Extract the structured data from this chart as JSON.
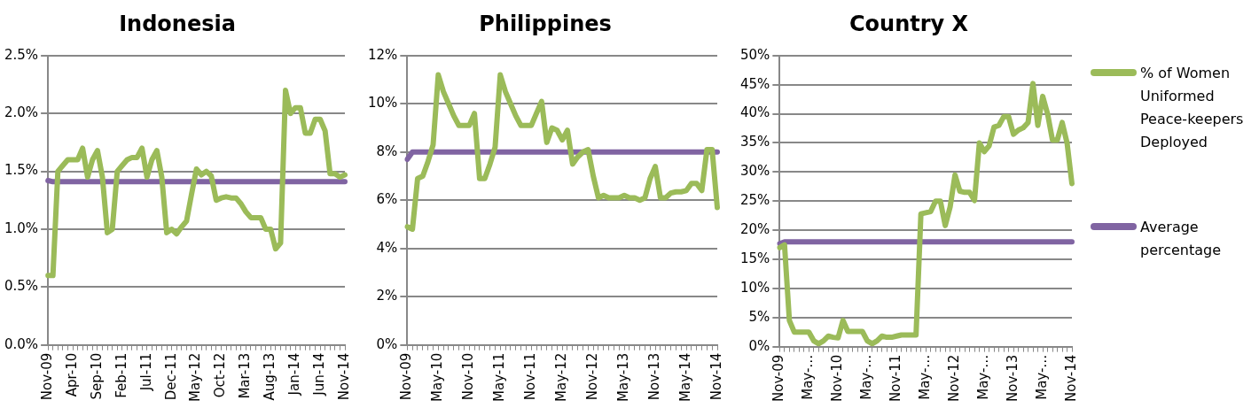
{
  "chart_data": [
    {
      "type": "line",
      "title": "Indonesia",
      "categories": [
        "Nov-09",
        null,
        null,
        null,
        null,
        "Apr-10",
        null,
        null,
        null,
        null,
        "Sep-10",
        null,
        null,
        null,
        null,
        "Feb-11",
        null,
        null,
        null,
        null,
        "Jul-11",
        null,
        null,
        null,
        null,
        "Dec-11",
        null,
        null,
        null,
        null,
        "May-12",
        null,
        null,
        null,
        null,
        "Oct-12",
        null,
        null,
        null,
        null,
        "Mar-13",
        null,
        null,
        null,
        null,
        "Aug-13",
        null,
        null,
        null,
        null,
        "Jan-14",
        null,
        null,
        null,
        null,
        "Jun-14",
        null,
        null,
        null,
        null,
        "Nov-14"
      ],
      "series": [
        {
          "color": "#9bbb59",
          "values": [
            0.6,
            0.6,
            1.5,
            1.55,
            1.6,
            1.6,
            1.6,
            1.7,
            1.45,
            1.6,
            1.68,
            1.45,
            0.97,
            1.0,
            1.5,
            1.55,
            1.6,
            1.62,
            1.62,
            1.7,
            1.45,
            1.6,
            1.68,
            1.45,
            0.97,
            1.0,
            0.96,
            1.02,
            1.07,
            1.3,
            1.52,
            1.47,
            1.5,
            1.46,
            1.25,
            1.27,
            1.28,
            1.27,
            1.27,
            1.22,
            1.15,
            1.1,
            1.1,
            1.1,
            1.0,
            1.0,
            0.83,
            0.88,
            2.2,
            2.0,
            2.05,
            2.05,
            1.83,
            1.83,
            1.95,
            1.95,
            1.85,
            1.48,
            1.48,
            1.45,
            1.47
          ]
        },
        {
          "color": "#8064a2",
          "values": [
            1.42,
            1.41,
            1.41,
            1.41,
            1.41,
            1.41,
            1.41,
            1.41,
            1.41,
            1.41,
            1.41,
            1.41,
            1.41,
            1.41,
            1.41,
            1.41,
            1.41,
            1.41,
            1.41,
            1.41,
            1.41,
            1.41,
            1.41,
            1.41,
            1.41,
            1.41,
            1.41,
            1.41,
            1.41,
            1.41,
            1.41,
            1.41,
            1.41,
            1.41,
            1.41,
            1.41,
            1.41,
            1.41,
            1.41,
            1.41,
            1.41,
            1.41,
            1.41,
            1.41,
            1.41,
            1.41,
            1.41,
            1.41,
            1.41,
            1.41,
            1.41,
            1.41,
            1.41,
            1.41,
            1.41,
            1.41,
            1.41,
            1.41,
            1.41,
            1.41,
            1.41
          ]
        }
      ],
      "ylim": [
        0,
        2.5
      ],
      "yticks": [
        {
          "value": 0,
          "label": "0.0%"
        },
        {
          "value": 0.5,
          "label": "0.5%"
        },
        {
          "value": 1,
          "label": "1.0%"
        },
        {
          "value": 1.5,
          "label": "1.5%"
        },
        {
          "value": 2,
          "label": "2.0%"
        },
        {
          "value": 2.5,
          "label": "2.5%"
        }
      ],
      "grid": "y",
      "marker": "none",
      "line_style": "solid"
    },
    {
      "type": "line",
      "title": "Philippines",
      "categories": [
        "Nov-09",
        null,
        null,
        null,
        null,
        null,
        "May-10",
        null,
        null,
        null,
        null,
        null,
        "Nov-10",
        null,
        null,
        null,
        null,
        null,
        "May-11",
        null,
        null,
        null,
        null,
        null,
        "Nov-11",
        null,
        null,
        null,
        null,
        null,
        "May-12",
        null,
        null,
        null,
        null,
        null,
        "Nov-12",
        null,
        null,
        null,
        null,
        null,
        "May-13",
        null,
        null,
        null,
        null,
        null,
        "Nov-13",
        null,
        null,
        null,
        null,
        null,
        "May-14",
        null,
        null,
        null,
        null,
        null,
        "Nov-14"
      ],
      "series": [
        {
          "color": "#9bbb59",
          "values": [
            4.9,
            4.8,
            6.9,
            7.0,
            7.6,
            8.3,
            11.2,
            10.5,
            10.0,
            9.5,
            9.1,
            9.1,
            9.1,
            9.6,
            6.9,
            6.9,
            7.5,
            8.2,
            11.2,
            10.5,
            10.0,
            9.5,
            9.1,
            9.1,
            9.1,
            9.6,
            10.1,
            8.4,
            9.0,
            8.9,
            8.5,
            8.9,
            7.5,
            7.8,
            8.0,
            8.1,
            7.0,
            6.1,
            6.2,
            6.1,
            6.1,
            6.1,
            6.2,
            6.1,
            6.1,
            6.0,
            6.1,
            6.9,
            7.4,
            6.1,
            6.1,
            6.3,
            6.35,
            6.35,
            6.4,
            6.7,
            6.7,
            6.4,
            8.1,
            8.1,
            5.7
          ]
        },
        {
          "color": "#8064a2",
          "values": [
            7.7,
            8.0,
            8.0,
            8.0,
            8.0,
            8.0,
            8.0,
            8.0,
            8.0,
            8.0,
            8.0,
            8.0,
            8.0,
            8.0,
            8.0,
            8.0,
            8.0,
            8.0,
            8.0,
            8.0,
            8.0,
            8.0,
            8.0,
            8.0,
            8.0,
            8.0,
            8.0,
            8.0,
            8.0,
            8.0,
            8.0,
            8.0,
            8.0,
            8.0,
            8.0,
            8.0,
            8.0,
            8.0,
            8.0,
            8.0,
            8.0,
            8.0,
            8.0,
            8.0,
            8.0,
            8.0,
            8.0,
            8.0,
            8.0,
            8.0,
            8.0,
            8.0,
            8.0,
            8.0,
            8.0,
            8.0,
            8.0,
            8.0,
            8.0,
            8.0,
            8.0
          ]
        }
      ],
      "ylim": [
        0,
        12
      ],
      "yticks": [
        {
          "value": 0,
          "label": "0%"
        },
        {
          "value": 2,
          "label": "2%"
        },
        {
          "value": 4,
          "label": "4%"
        },
        {
          "value": 6,
          "label": "6%"
        },
        {
          "value": 8,
          "label": "8%"
        },
        {
          "value": 10,
          "label": "10%"
        },
        {
          "value": 12,
          "label": "12%"
        }
      ],
      "grid": "y",
      "marker": "none",
      "line_style": "solid"
    },
    {
      "type": "line",
      "title": "Country X",
      "categories": [
        "Nov-09",
        null,
        null,
        null,
        null,
        null,
        "May-…",
        null,
        null,
        null,
        null,
        null,
        "Nov-10",
        null,
        null,
        null,
        null,
        null,
        "May-…",
        null,
        null,
        null,
        null,
        null,
        "Nov-11",
        null,
        null,
        null,
        null,
        null,
        "May-…",
        null,
        null,
        null,
        null,
        null,
        "Nov-12",
        null,
        null,
        null,
        null,
        null,
        "May-…",
        null,
        null,
        null,
        null,
        null,
        "Nov-13",
        null,
        null,
        null,
        null,
        null,
        "May-…",
        null,
        null,
        null,
        null,
        null,
        "Nov-14"
      ],
      "series": [
        {
          "name": "% of Women Uniformed Peace-keepers Deployed",
          "color": "#9bbb59",
          "values": [
            17,
            17.5,
            4.5,
            2.5,
            2.5,
            2.5,
            2.5,
            1,
            0.5,
            1,
            1.8,
            1.6,
            1.5,
            4.5,
            2.6,
            2.6,
            2.6,
            2.6,
            1,
            0.5,
            1,
            1.8,
            1.6,
            1.6,
            1.8,
            2,
            2,
            2,
            2,
            22.8,
            23,
            23.2,
            25,
            25,
            20.8,
            24,
            29.5,
            26.7,
            26.5,
            26.5,
            25.1,
            35,
            33.5,
            34.5,
            37.7,
            38,
            39.5,
            39.5,
            36.5,
            37.2,
            37.6,
            38.5,
            45.2,
            38,
            43,
            40,
            35.5,
            35.5,
            38.5,
            35,
            28
          ]
        },
        {
          "name": "Average percentage",
          "color": "#8064a2",
          "values": [
            17.7,
            18,
            18,
            18,
            18,
            18,
            18,
            18,
            18,
            18,
            18,
            18,
            18,
            18,
            18,
            18,
            18,
            18,
            18,
            18,
            18,
            18,
            18,
            18,
            18,
            18,
            18,
            18,
            18,
            18,
            18,
            18,
            18,
            18,
            18,
            18,
            18,
            18,
            18,
            18,
            18,
            18,
            18,
            18,
            18,
            18,
            18,
            18,
            18,
            18,
            18,
            18,
            18,
            18,
            18,
            18,
            18,
            18,
            18,
            18,
            18
          ]
        }
      ],
      "ylim": [
        0,
        50
      ],
      "yticks": [
        {
          "value": 0,
          "label": "0%"
        },
        {
          "value": 5,
          "label": "5%"
        },
        {
          "value": 10,
          "label": "10%"
        },
        {
          "value": 15,
          "label": "15%"
        },
        {
          "value": 20,
          "label": "20%"
        },
        {
          "value": 25,
          "label": "25%"
        },
        {
          "value": 30,
          "label": "30%"
        },
        {
          "value": 35,
          "label": "35%"
        },
        {
          "value": 40,
          "label": "40%"
        },
        {
          "value": 45,
          "label": "45%"
        },
        {
          "value": 50,
          "label": "50%"
        }
      ],
      "grid": "y",
      "marker": "none",
      "line_style": "solid",
      "legend": "right"
    }
  ]
}
